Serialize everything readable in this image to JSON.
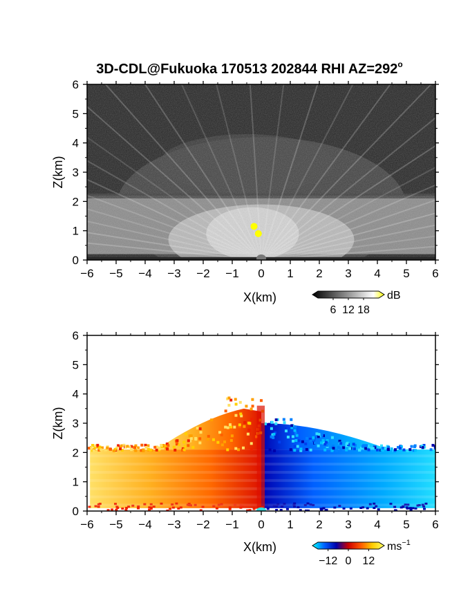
{
  "title": "3D-CDL@Fukuoka 170513 202844 RHI AZ=292",
  "title_superscript": "o",
  "chart_data": [
    {
      "type": "heatmap",
      "name": "reflectivity-panel",
      "xlabel": "X(km)",
      "ylabel": "Z(km)",
      "xlim": [
        -6,
        6
      ],
      "ylim": [
        0,
        6
      ],
      "x_ticks": [
        "−6",
        "−5",
        "−4",
        "−3",
        "−2",
        "−1",
        "0",
        "1",
        "2",
        "3",
        "4",
        "5",
        "6"
      ],
      "y_ticks": [
        "0",
        "1",
        "2",
        "3",
        "4",
        "5",
        "6"
      ],
      "colormap": "grayscale",
      "colorbar": {
        "unit": "dB",
        "ticks": [
          "6",
          "12",
          "18"
        ],
        "tick_values": [
          6,
          12,
          18
        ],
        "range": [
          0,
          24
        ]
      },
      "features": {
        "bright_layer_z_km": [
          0.2,
          2.2
        ],
        "haze_top_z_km": 4.2,
        "highlight_color": "#ffff00",
        "highlight_points": [
          {
            "x": -0.25,
            "z": 1.15
          },
          {
            "x": -0.1,
            "z": 0.9
          }
        ]
      }
    },
    {
      "type": "heatmap",
      "name": "velocity-panel",
      "xlabel": "X(km)",
      "ylabel": "Z(km)",
      "xlim": [
        -6,
        6
      ],
      "ylim": [
        0,
        6
      ],
      "x_ticks": [
        "−6",
        "−5",
        "−4",
        "−3",
        "−2",
        "−1",
        "0",
        "1",
        "2",
        "3",
        "4",
        "5",
        "6"
      ],
      "y_ticks": [
        "0",
        "1",
        "2",
        "3",
        "4",
        "5",
        "6"
      ],
      "colormap": "diverging-velocity",
      "colorbar": {
        "unit": "ms",
        "unit_superscript": "−1",
        "ticks": [
          "−12",
          "0",
          "12"
        ],
        "tick_values": [
          -12,
          0,
          12
        ],
        "range": [
          -18,
          18
        ],
        "colors": [
          "#00ffff",
          "#0060ff",
          "#0000aa",
          "#cc0000",
          "#ff5500",
          "#ffcc00",
          "#ffff66"
        ]
      },
      "features": {
        "main_layer_z_km": [
          0.1,
          2.1
        ],
        "upper_layer_top_z_km": 4.0,
        "negative_side": "x>0",
        "positive_side": "x<0"
      }
    }
  ]
}
